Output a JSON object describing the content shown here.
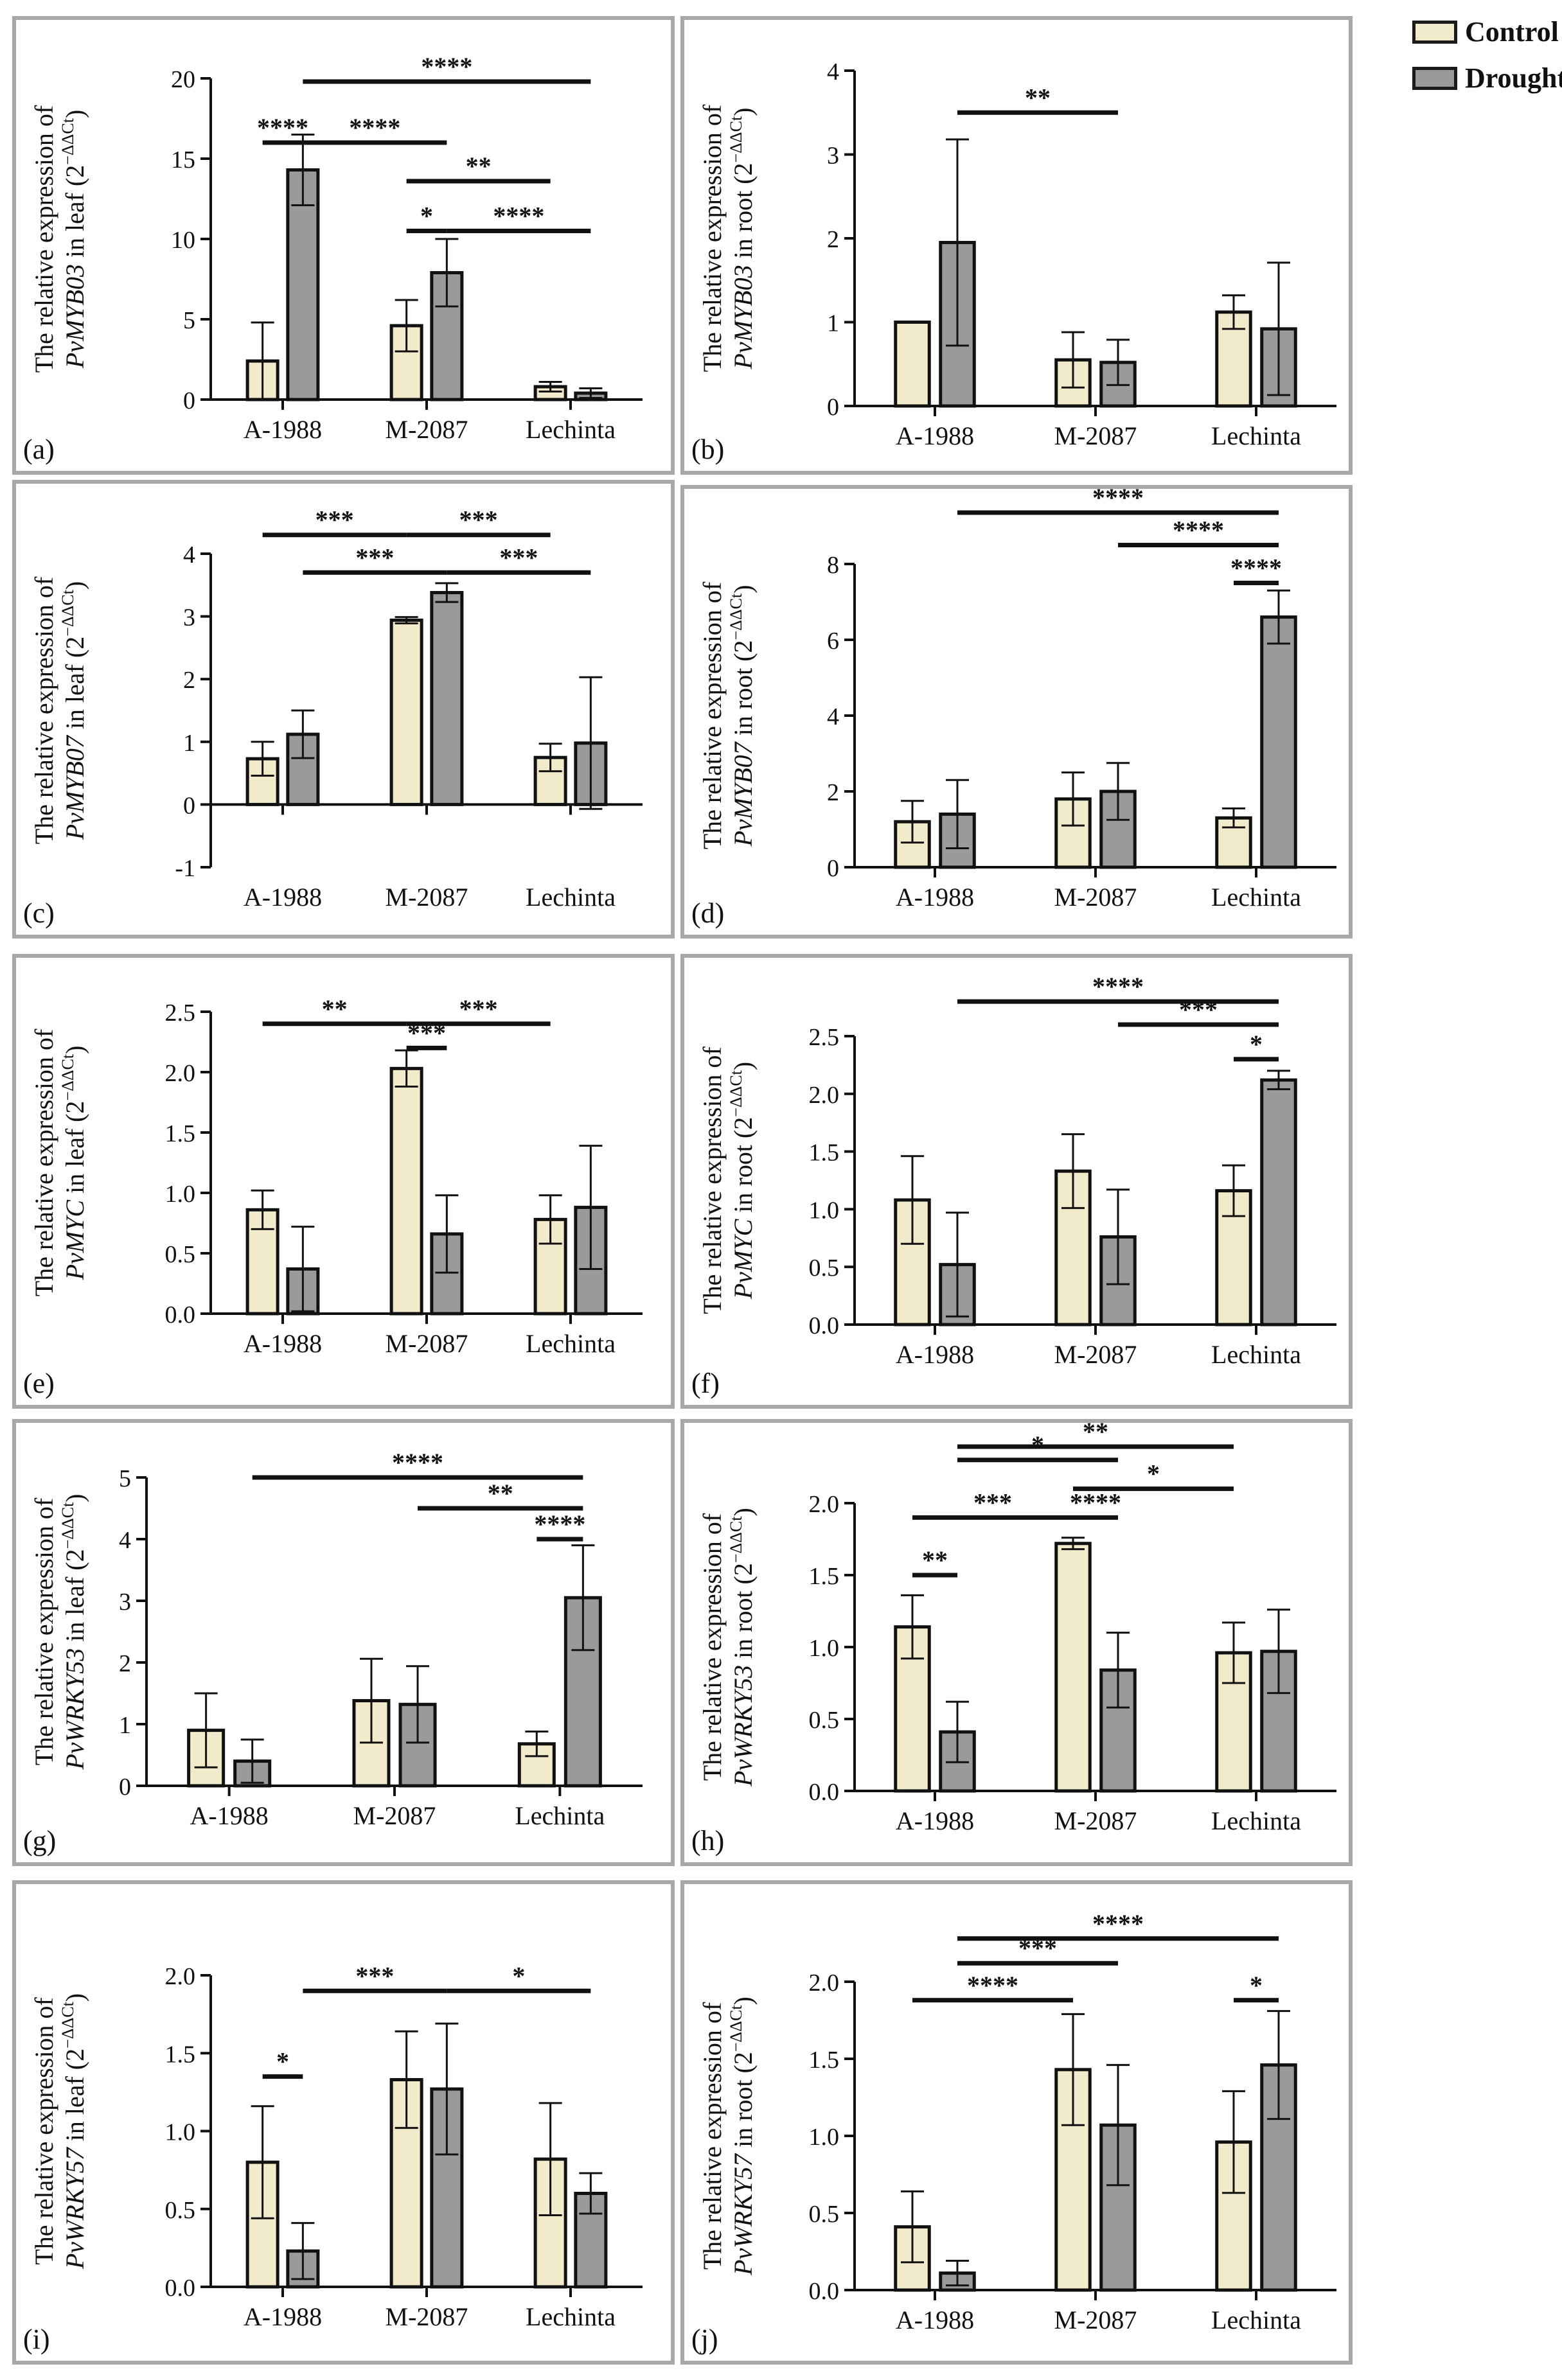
{
  "figure": {
    "legend": [
      {
        "label": "Control",
        "color": "#f1ebcc"
      },
      {
        "label": "Drought",
        "color": "#9a9a9a"
      }
    ],
    "groups": [
      "A-1988",
      "M-2087",
      "Lechinta"
    ]
  },
  "chart_data": [
    {
      "panel": "(a)",
      "type": "bar",
      "gene": "PvMYB03",
      "tissue": "leaf",
      "ylabel_pre": "The relative expression of",
      "ylabel_tissue": "in  leaf (2",
      "categories": [
        "A-1988",
        "M-2087",
        "Lechinta"
      ],
      "ylim": [
        0,
        20
      ],
      "yticks": [
        0,
        5,
        10,
        15,
        20
      ],
      "series": [
        {
          "name": "Control",
          "values": [
            2.4,
            4.6,
            0.8
          ],
          "errors": [
            2.4,
            1.6,
            0.3
          ]
        },
        {
          "name": "Drought",
          "values": [
            14.3,
            7.9,
            0.4
          ],
          "errors": [
            2.2,
            2.1,
            0.3
          ]
        }
      ],
      "significance": [
        {
          "from": [
            0,
            0
          ],
          "to": [
            0,
            1
          ],
          "level": 16.0,
          "label": "****"
        },
        {
          "from": [
            0,
            1
          ],
          "to": [
            2,
            1
          ],
          "level": 19.8,
          "label": "****"
        },
        {
          "from": [
            0,
            1
          ],
          "to": [
            1,
            1
          ],
          "level": 16.0,
          "label": "****"
        },
        {
          "from": [
            1,
            0
          ],
          "to": [
            2,
            0
          ],
          "level": 13.6,
          "label": "**"
        },
        {
          "from": [
            1,
            0
          ],
          "to": [
            1,
            1
          ],
          "level": 10.5,
          "label": "*"
        },
        {
          "from": [
            1,
            1
          ],
          "to": [
            2,
            1
          ],
          "level": 10.5,
          "label": "****"
        }
      ]
    },
    {
      "panel": "(b)",
      "type": "bar",
      "gene": "PvMYB03",
      "tissue": "root",
      "ylabel_pre": "The relative expression of",
      "ylabel_tissue": "in  root (2",
      "categories": [
        "A-1988",
        "M-2087",
        "Lechinta"
      ],
      "ylim": [
        0,
        4
      ],
      "yticks": [
        0,
        1,
        2,
        3,
        4
      ],
      "series": [
        {
          "name": "Control",
          "values": [
            1.0,
            0.55,
            1.12
          ],
          "errors": [
            0,
            0.33,
            0.2
          ]
        },
        {
          "name": "Drought",
          "values": [
            1.95,
            0.52,
            0.92
          ],
          "errors": [
            1.23,
            0.27,
            0.79
          ]
        }
      ],
      "significance": [
        {
          "from": [
            0,
            1
          ],
          "to": [
            1,
            1
          ],
          "level": 3.5,
          "label": "**"
        }
      ]
    },
    {
      "panel": "(c)",
      "type": "bar",
      "gene": "PvMYB07",
      "tissue": "leaf",
      "ylabel_pre": "The relative expression of",
      "ylabel_tissue": "in  leaf (2",
      "categories": [
        "A-1988",
        "M-2087",
        "Lechinta"
      ],
      "ylim": [
        -1,
        4
      ],
      "yticks": [
        -1,
        0,
        1,
        2,
        3,
        4
      ],
      "series": [
        {
          "name": "Control",
          "values": [
            0.73,
            2.94,
            0.75
          ],
          "errors": [
            0.27,
            0.05,
            0.22
          ]
        },
        {
          "name": "Drought",
          "values": [
            1.12,
            3.38,
            0.98
          ],
          "errors": [
            0.38,
            0.15,
            1.05
          ]
        }
      ],
      "significance": [
        {
          "from": [
            0,
            0
          ],
          "to": [
            1,
            0
          ],
          "level": 4.3,
          "label": "***"
        },
        {
          "from": [
            1,
            0
          ],
          "to": [
            2,
            0
          ],
          "level": 4.3,
          "label": "***"
        },
        {
          "from": [
            0,
            1
          ],
          "to": [
            1,
            1
          ],
          "level": 3.7,
          "label": "***"
        },
        {
          "from": [
            1,
            1
          ],
          "to": [
            2,
            1
          ],
          "level": 3.7,
          "label": "***"
        }
      ]
    },
    {
      "panel": "(d)",
      "type": "bar",
      "gene": "PvMYB07",
      "tissue": "root",
      "ylabel_pre": "The relative expression of",
      "ylabel_tissue": "in  root (2",
      "categories": [
        "A-1988",
        "M-2087",
        "Lechinta"
      ],
      "ylim": [
        0,
        8
      ],
      "yticks": [
        0,
        2,
        4,
        6,
        8
      ],
      "series": [
        {
          "name": "Control",
          "values": [
            1.2,
            1.8,
            1.3
          ],
          "errors": [
            0.55,
            0.7,
            0.25
          ]
        },
        {
          "name": "Drought",
          "values": [
            1.4,
            2.0,
            6.6
          ],
          "errors": [
            0.9,
            0.75,
            0.7
          ]
        }
      ],
      "significance": [
        {
          "from": [
            0,
            1
          ],
          "to": [
            2,
            1
          ],
          "level": 9.4,
          "label": "****"
        },
        {
          "from": [
            1,
            1
          ],
          "to": [
            2,
            1
          ],
          "level": 8.5,
          "label": "****"
        },
        {
          "from": [
            2,
            0
          ],
          "to": [
            2,
            1
          ],
          "level": 7.5,
          "label": "****"
        }
      ]
    },
    {
      "panel": "(e)",
      "type": "bar",
      "gene": "PvMYC",
      "tissue": "leaf",
      "ylabel_pre": "The relative expression of",
      "ylabel_tissue": "in  leaf (2",
      "categories": [
        "A-1988",
        "M-2087",
        "Lechinta"
      ],
      "ylim": [
        0,
        2.5
      ],
      "yticks": [
        0.0,
        0.5,
        1.0,
        1.5,
        2.0,
        2.5
      ],
      "series": [
        {
          "name": "Control",
          "values": [
            0.86,
            2.03,
            0.78
          ],
          "errors": [
            0.16,
            0.15,
            0.2
          ]
        },
        {
          "name": "Drought",
          "values": [
            0.37,
            0.66,
            0.88
          ],
          "errors": [
            0.35,
            0.32,
            0.51
          ]
        }
      ],
      "significance": [
        {
          "from": [
            0,
            0
          ],
          "to": [
            1,
            0
          ],
          "level": 2.4,
          "label": "**"
        },
        {
          "from": [
            1,
            0
          ],
          "to": [
            2,
            0
          ],
          "level": 2.4,
          "label": "***"
        },
        {
          "from": [
            1,
            0
          ],
          "to": [
            1,
            1
          ],
          "level": 2.2,
          "label": "***"
        }
      ]
    },
    {
      "panel": "(f)",
      "type": "bar",
      "gene": "PvMYC",
      "tissue": "root",
      "ylabel_pre": "The relative expression of",
      "ylabel_tissue": "in  root (2",
      "categories": [
        "A-1988",
        "M-2087",
        "Lechinta"
      ],
      "ylim": [
        0,
        2.5
      ],
      "yticks": [
        0.0,
        0.5,
        1.0,
        1.5,
        2.0,
        2.5
      ],
      "series": [
        {
          "name": "Control",
          "values": [
            1.08,
            1.33,
            1.16
          ],
          "errors": [
            0.38,
            0.32,
            0.22
          ]
        },
        {
          "name": "Drought",
          "values": [
            0.52,
            0.76,
            2.12
          ],
          "errors": [
            0.45,
            0.41,
            0.08
          ]
        }
      ],
      "significance": [
        {
          "from": [
            0,
            1
          ],
          "to": [
            2,
            1
          ],
          "level": 2.8,
          "label": "****"
        },
        {
          "from": [
            1,
            1
          ],
          "to": [
            2,
            1
          ],
          "level": 2.6,
          "label": "***"
        },
        {
          "from": [
            2,
            0
          ],
          "to": [
            2,
            1
          ],
          "level": 2.3,
          "label": "*"
        }
      ]
    },
    {
      "panel": "(g)",
      "type": "bar",
      "gene": "PvWRKY53",
      "tissue": "leaf",
      "ylabel_pre": "The relative expression of",
      "ylabel_tissue": "in  leaf (2",
      "categories": [
        "A-1988",
        "M-2087",
        "Lechinta"
      ],
      "ylim": [
        0,
        5
      ],
      "yticks": [
        0,
        1,
        2,
        3,
        4,
        5
      ],
      "series": [
        {
          "name": "Control",
          "values": [
            0.9,
            1.38,
            0.68
          ],
          "errors": [
            0.6,
            0.68,
            0.2
          ]
        },
        {
          "name": "Drought",
          "values": [
            0.4,
            1.32,
            3.05
          ],
          "errors": [
            0.35,
            0.62,
            0.85
          ]
        }
      ],
      "significance": [
        {
          "from": [
            0,
            1
          ],
          "to": [
            2,
            1
          ],
          "level": 5.0,
          "label": "****"
        },
        {
          "from": [
            1,
            1
          ],
          "to": [
            2,
            1
          ],
          "level": 4.5,
          "label": "**"
        },
        {
          "from": [
            2,
            0
          ],
          "to": [
            2,
            1
          ],
          "level": 4.0,
          "label": "****"
        }
      ]
    },
    {
      "panel": "(h)",
      "type": "bar",
      "gene": "PvWRKY53",
      "tissue": "root",
      "ylabel_pre": "The relative expression of",
      "ylabel_tissue": "in  root (2",
      "categories": [
        "A-1988",
        "M-2087",
        "Lechinta"
      ],
      "ylim": [
        0,
        2.0
      ],
      "yticks": [
        0.0,
        0.5,
        1.0,
        1.5,
        2.0
      ],
      "series": [
        {
          "name": "Control",
          "values": [
            1.14,
            1.72,
            0.96
          ],
          "errors": [
            0.22,
            0.04,
            0.21
          ]
        },
        {
          "name": "Drought",
          "values": [
            0.41,
            0.84,
            0.97
          ],
          "errors": [
            0.21,
            0.26,
            0.29
          ]
        }
      ],
      "significance": [
        {
          "from": [
            0,
            1
          ],
          "to": [
            2,
            0
          ],
          "level": 2.5,
          "label": "**"
        },
        {
          "from": [
            0,
            1
          ],
          "to": [
            1,
            1
          ],
          "level": 2.3,
          "label": "*"
        },
        {
          "from": [
            1,
            0
          ],
          "to": [
            2,
            0
          ],
          "level": 2.1,
          "label": "*"
        },
        {
          "from": [
            0,
            0
          ],
          "to": [
            1,
            0
          ],
          "level": 1.9,
          "label": "***"
        },
        {
          "from": [
            1,
            0
          ],
          "to": [
            1,
            1
          ],
          "level": 1.9,
          "label": "****"
        },
        {
          "from": [
            0,
            0
          ],
          "to": [
            0,
            1
          ],
          "level": 1.5,
          "label": "**"
        }
      ]
    },
    {
      "panel": "(i)",
      "type": "bar",
      "gene": "PvWRKY57",
      "tissue": "leaf",
      "ylabel_pre": "The relative expression of",
      "ylabel_tissue": "in  leaf (2",
      "categories": [
        "A-1988",
        "M-2087",
        "Lechinta"
      ],
      "ylim": [
        0,
        2.0
      ],
      "yticks": [
        0.0,
        0.5,
        1.0,
        1.5,
        2.0
      ],
      "series": [
        {
          "name": "Control",
          "values": [
            0.8,
            1.33,
            0.82
          ],
          "errors": [
            0.36,
            0.31,
            0.36
          ]
        },
        {
          "name": "Drought",
          "values": [
            0.23,
            1.27,
            0.6
          ],
          "errors": [
            0.18,
            0.42,
            0.13
          ]
        }
      ],
      "significance": [
        {
          "from": [
            0,
            0
          ],
          "to": [
            0,
            1
          ],
          "level": 1.35,
          "label": "*"
        },
        {
          "from": [
            0,
            1
          ],
          "to": [
            1,
            1
          ],
          "level": 1.9,
          "label": "***"
        },
        {
          "from": [
            1,
            1
          ],
          "to": [
            2,
            1
          ],
          "level": 1.9,
          "label": "*"
        }
      ]
    },
    {
      "panel": "(j)",
      "type": "bar",
      "gene": "PvWRKY57",
      "tissue": "root",
      "ylabel_pre": "The relative expression of",
      "ylabel_tissue": "in  root (2",
      "categories": [
        "A-1988",
        "M-2087",
        "Lechinta"
      ],
      "ylim": [
        0,
        2.0
      ],
      "yticks": [
        0.0,
        0.5,
        1.0,
        1.5,
        2.0
      ],
      "series": [
        {
          "name": "Control",
          "values": [
            0.41,
            1.43,
            0.96
          ],
          "errors": [
            0.23,
            0.36,
            0.33
          ]
        },
        {
          "name": "Drought",
          "values": [
            0.11,
            1.07,
            1.46
          ],
          "errors": [
            0.08,
            0.39,
            0.35
          ]
        }
      ],
      "significance": [
        {
          "from": [
            0,
            1
          ],
          "to": [
            2,
            1
          ],
          "level": 2.28,
          "label": "****"
        },
        {
          "from": [
            0,
            1
          ],
          "to": [
            1,
            1
          ],
          "level": 2.12,
          "label": "***"
        },
        {
          "from": [
            0,
            0
          ],
          "to": [
            1,
            0
          ],
          "level": 1.88,
          "label": "****"
        },
        {
          "from": [
            2,
            0
          ],
          "to": [
            2,
            1
          ],
          "level": 1.88,
          "label": "*"
        }
      ]
    }
  ]
}
